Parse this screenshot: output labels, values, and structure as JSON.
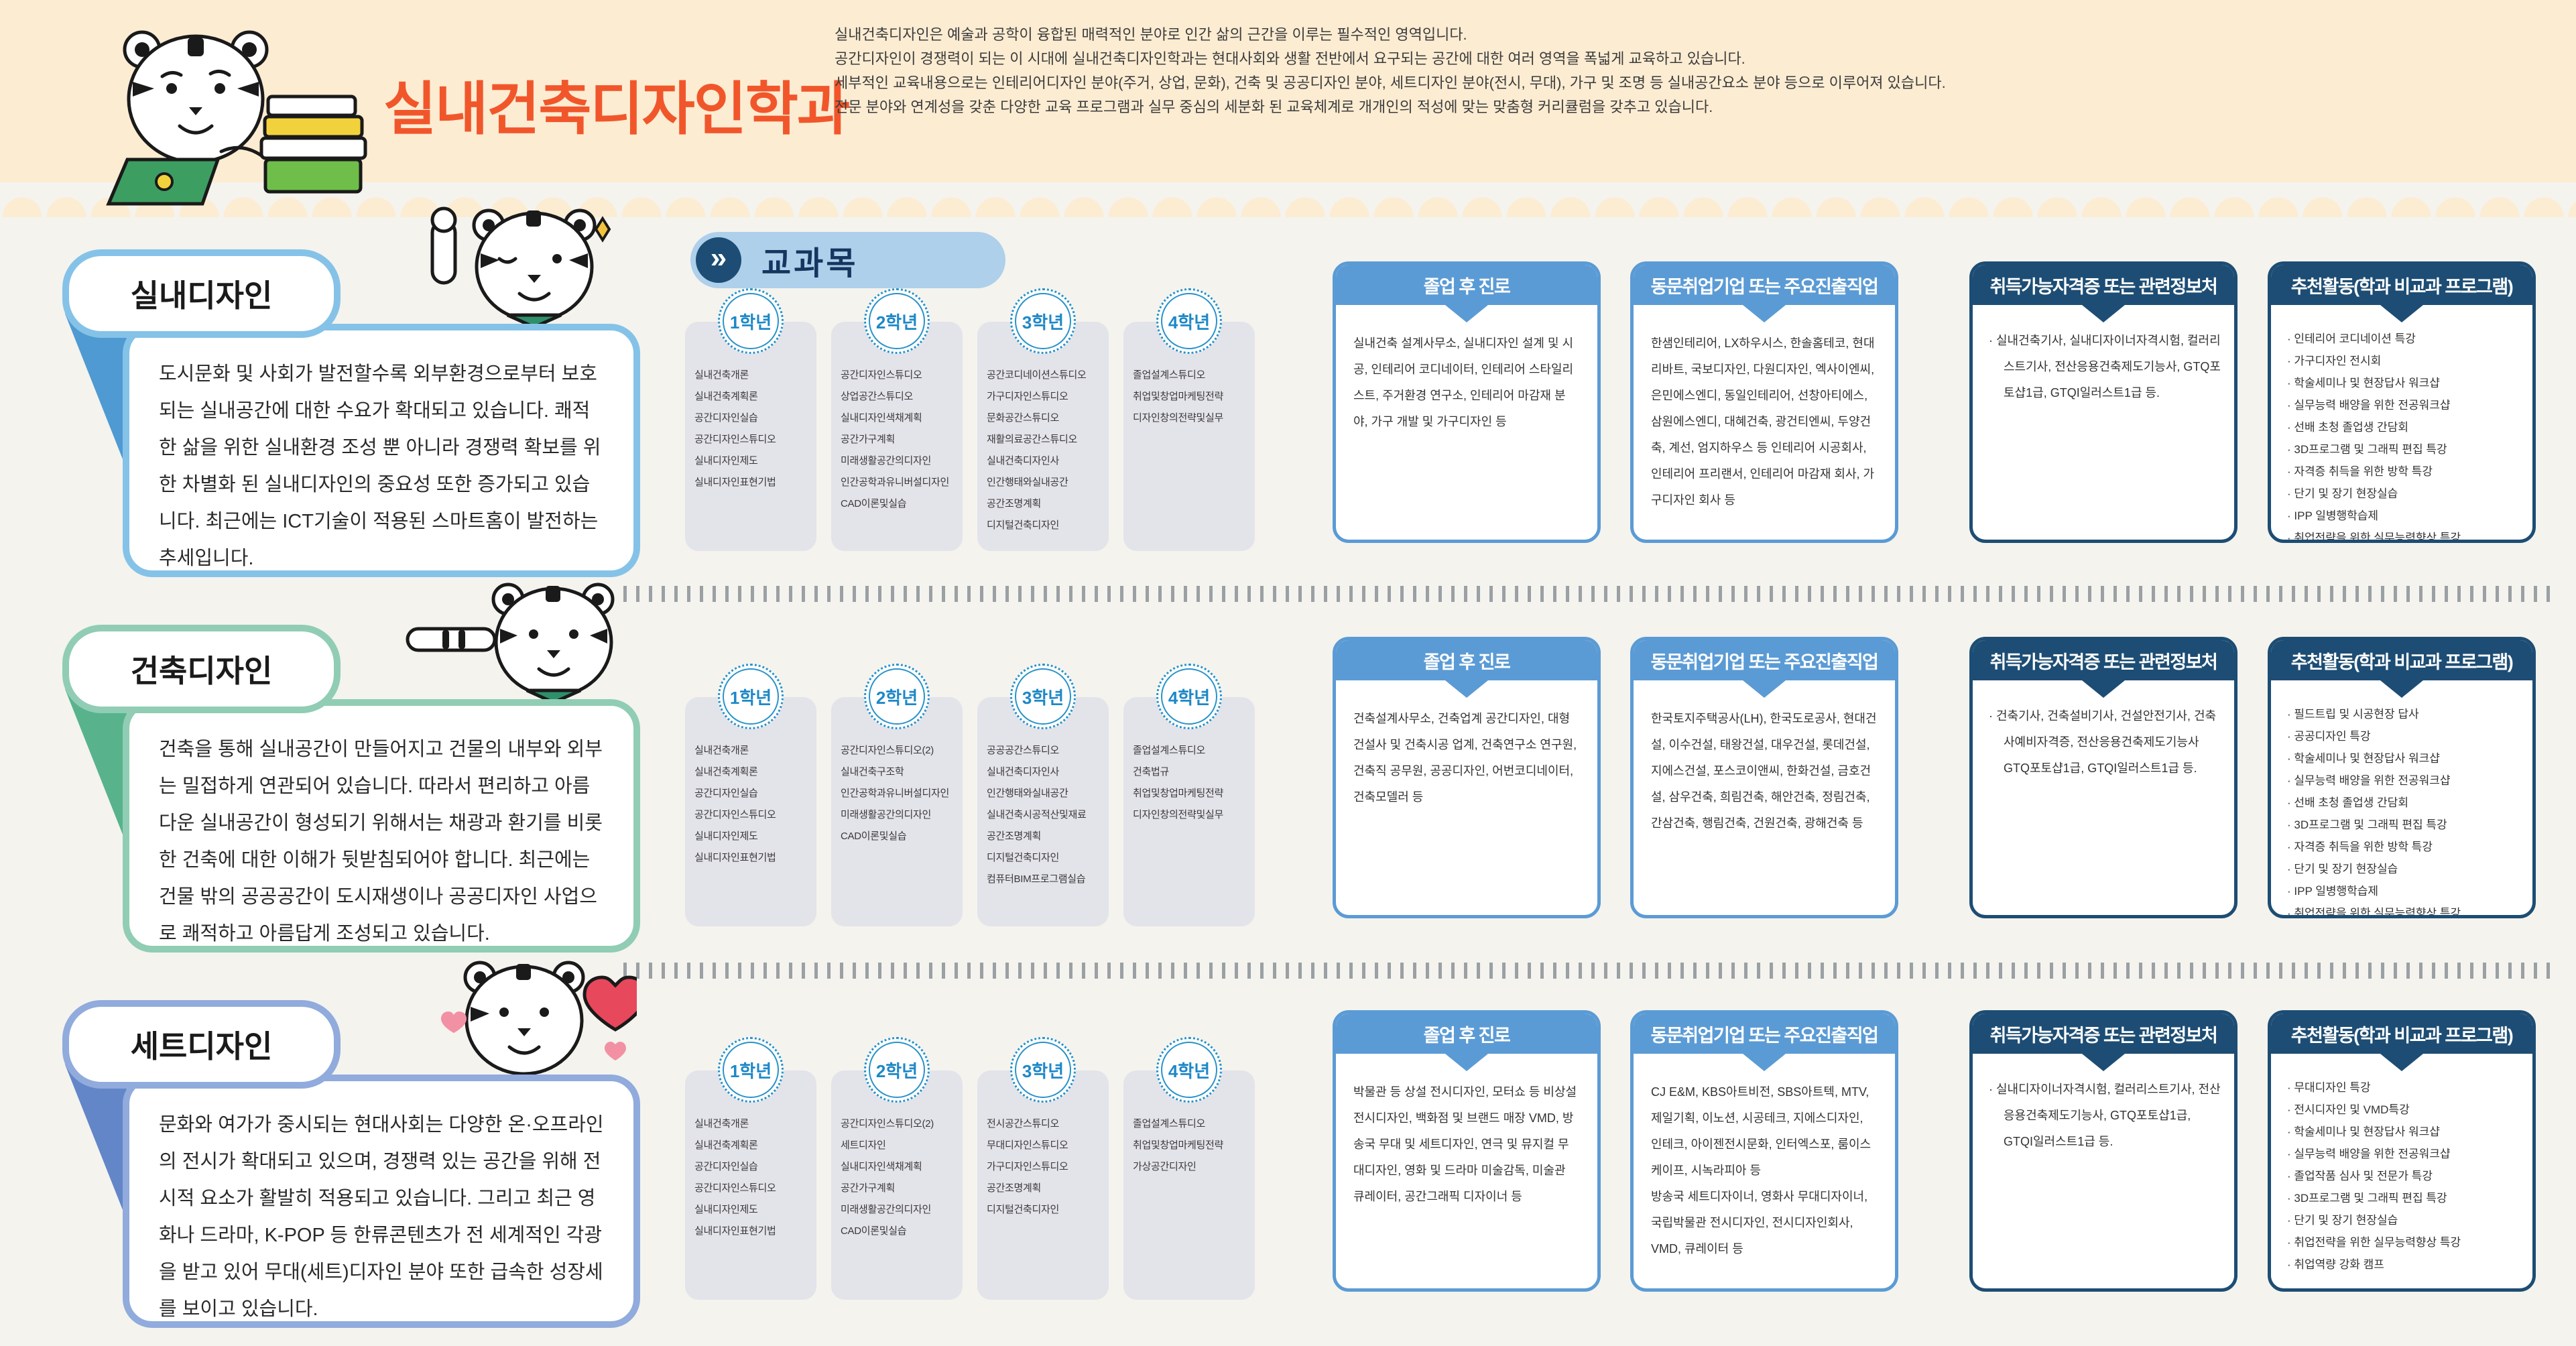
{
  "header": {
    "title": "실내건축디자인학과",
    "intro_lines": [
      "실내건축디자인은 예술과 공학이 융합된 매력적인 분야로 인간 삶의 근간을 이루는 필수적인 영역입니다.",
      "공간디자인이 경쟁력이 되는 이 시대에 실내건축디자인학과는 현대사회와 생활 전반에서 요구되는 공간에 대한 여러 영역을 폭넓게 교육하고 있습니다.",
      "세부적인 교육내용으로는 인테리어디자인 분야(주거, 상업, 문화), 건축 및 공공디자인 분야, 세트디자인 분야(전시, 무대), 가구 및 조명 등 실내공간요소 분야 등으로 이루어져 있습니다.",
      "전문 분야와 연계성을 갖춘 다양한 교육 프로그램과 실무 중심의 세분화 된 교육체계로 개개인의 적성에 맞는 맞춤형 커리큘럼을 갖추고 있습니다."
    ]
  },
  "curriculum_label": "교과목",
  "arrow_glyph": "»",
  "year_labels": [
    "1학년",
    "2학년",
    "3학년",
    "4학년"
  ],
  "panel_titles": {
    "career": "졸업 후 진로",
    "companies": "동문취업기업 또는 주요진출직업",
    "certs": "취득가능자격증 또는 관련정보처",
    "activities": "추천활동(학과 비교과 프로그램)"
  },
  "sections": [
    {
      "title": "실내디자인",
      "description": "도시문화 및 사회가 발전할수록 외부환경으로부터 보호되는 실내공간에 대한 수요가 확대되고 있습니다. 쾌적한 삶을 위한 실내환경 조성 뿐 아니라 경쟁력 확보를 위한 차별화 된 실내디자인의 중요성 또한 증가되고 있습니다. 최근에는 ICT기술이 적용된 스마트홈이 발전하는 추세입니다.",
      "years": [
        [
          "실내건축개론",
          "실내건축계획론",
          "공간디자인실습",
          "공간디자인스튜디오",
          "실내디자인제도",
          "실내디자인표현기법"
        ],
        [
          "공간디자인스튜디오",
          "상업공간스튜디오",
          "실내디자인색채계획",
          "공간가구계획",
          "미래생활공간의디자인",
          "인간공학과유니버설디자인",
          "CAD이론및실습"
        ],
        [
          "공간코디네이션스튜디오",
          "가구디자인스튜디오",
          "문화공간스튜디오",
          "재활의료공간스튜디오",
          "실내건축디자인사",
          "인간행태와실내공간",
          "공간조명계획",
          "디지털건축디자인"
        ],
        [
          "졸업설계스튜디오",
          "취업및창업마케팅전략",
          "디자인창의전략및실무"
        ]
      ],
      "career": "실내건축 설계사무소, 실내디자인 설계 및 시공, 인테리어 코디네이터, 인테리어 스타일리스트, 주거환경 연구소, 인테리어 마감재 분야, 가구 개발 및 가구디자인 등",
      "companies": "한샘인테리어, LX하우시스, 한솔홈테코, 현대리바트, 국보디자인, 다원디자인, 엑사이엔씨,은민에스엔디, 동일인테리어, 선창아티에스, 삼원에스엔디, 대혜건축, 광건티엔씨, 두양건축, 계선, 엄지하우스 등 인테리어 시공회사, 인테리어 프리랜서, 인테리어 마감재 회사, 가구디자인 회사 등",
      "certs": [
        "· 실내건축기사, 실내디자이너자격시험, 컬러리스트기사, 전산응용건축제도기능사, GTQ포토샵1급, GTQI일러스트1급 등."
      ],
      "activities": [
        "· 인테리어 코디네이션 특강",
        "· 가구디자인 전시회",
        "· 학술세미나 및 현장답사 워크샵",
        "· 실무능력 배양을 위한 전공워크샵",
        "· 선배 초청 졸업생 간담회",
        "· 3D프로그램 및 그래픽 편집 특강",
        "· 자격증 취득을 위한 방학 특강",
        "· 단기 및 장기 현장실습",
        "· IPP 일병행학습제",
        "· 취업전략을 위한 실무능력향상 특강"
      ]
    },
    {
      "title": "건축디자인",
      "description": "건축을 통해 실내공간이 만들어지고 건물의 내부와 외부는 밀접하게 연관되어 있습니다. 따라서 편리하고 아름다운 실내공간이 형성되기 위해서는 채광과 환기를 비롯한 건축에 대한 이해가 뒷받침되어야 합니다. 최근에는 건물 밖의 공공공간이 도시재생이나 공공디자인 사업으로 쾌적하고 아름답게 조성되고 있습니다.",
      "years": [
        [
          "실내건축개론",
          "실내건축계획론",
          "공간디자인실습",
          "공간디자인스튜디오",
          "실내디자인제도",
          "실내디자인표현기법"
        ],
        [
          "공간디자인스튜디오(2)",
          "실내건축구조학",
          "인간공학과유니버설디자인",
          "미래생활공간의디자인",
          "CAD이론및실습"
        ],
        [
          "공공공간스튜디오",
          "실내건축디자인사",
          "인간행태와실내공간",
          "실내건축시공적산및재료",
          "공간조명계획",
          "디지털건축디자인",
          "컴퓨터BIM프로그램실습"
        ],
        [
          "졸업설계스튜디오",
          "건축법규",
          "취업및창업마케팅전략",
          "디자인창의전략및실무"
        ]
      ],
      "career": "건축설계사무소, 건축업계 공간디자인, 대형 건설사 및 건축시공 업계, 건축연구소 연구원, 건축직 공무원, 공공디자인, 어번코디네이터, 건축모델러 등",
      "companies": "한국토지주택공사(LH), 한국도로공사, 현대건설, 이수건설, 태왕건설, 대우건설, 롯데건설, 지에스건설, 포스코이앤씨, 한화건설, 금호건설, 삼우건축, 희림건축, 해안건축, 정림건축, 간삼건축, 행림건축, 건원건축, 광해건축 등",
      "certs": [
        "· 건축기사, 건축설비기사, 건설안전기사, 건축사예비자격증, 전산응용건축제도기능사 GTQ포토샵1급, GTQI일러스트1급 등."
      ],
      "activities": [
        "· 필드트립 및 시공현장 답사",
        "· 공공디자인 특강",
        "· 학술세미나 및 현장답사 워크샵",
        "· 실무능력 배양을 위한 전공워크샵",
        "· 선배 초청 졸업생 간담회",
        "· 3D프로그램 및 그래픽 편집 특강",
        "· 자격증 취득을 위한 방학 특강",
        "· 단기 및 장기 현장실습",
        "· IPP 일병행학습제",
        "· 취업전략을 위한 실무능력향상 특강"
      ]
    },
    {
      "title": "세트디자인",
      "description": "문화와 여가가 중시되는 현대사회는 다양한 온·오프라인의 전시가 확대되고 있으며, 경쟁력 있는 공간을 위해 전시적 요소가 활발히 적용되고 있습니다. 그리고 최근 영화나 드라마, K-POP 등 한류콘텐츠가 전 세계적인 각광을 받고 있어 무대(세트)디자인 분야 또한 급속한 성장세를 보이고 있습니다.",
      "years": [
        [
          "실내건축개론",
          "실내건축계획론",
          "공간디자인실습",
          "공간디자인스튜디오",
          "실내디자인제도",
          "실내디자인표현기법"
        ],
        [
          "공간디자인스튜디오(2)",
          "세트디자인",
          "실내디자인색채계획",
          "공간가구계획",
          "미래생활공간의디자인",
          "CAD이론및실습"
        ],
        [
          "전시공간스튜디오",
          "무대디자인스튜디오",
          "가구디자인스튜디오",
          "공간조명계획",
          "디지털건축디자인"
        ],
        [
          "졸업설계스튜디오",
          "취업및창업마케팅전략",
          "가상공간디자인"
        ]
      ],
      "career": "박물관 등 상설 전시디자인, 모터쇼 등 비상설 전시디자인, 백화점 및 브랜드 매장 VMD, 방송국 무대 및 세트디자인, 연극 및 뮤지컬 무대디자인, 영화 및 드라마 미술감독, 미술관 큐레이터, 공간그래픽 디자이너 등",
      "companies": "CJ E&M, KBS아트비전, SBS아트텍, MTV, 제일기획, 이노션, 시공테크, 지에스디자인, 인테크, 아이젠전시문화, 인터엑스포, 룸이스케이프, 시녹라피아 등\n방송국 세트디자이너, 영화사 무대디자이너, 국립박물관 전시디자인, 전시디자인회사, VMD, 큐레이터 등",
      "certs": [
        "· 실내디자이너자격시험, 컬러리스트기사, 전산응용건축제도기능사, GTQ포토샵1급, GTQI일러스트1급 등."
      ],
      "activities": [
        "· 무대디자인 특강",
        "· 전시디자인 및 VMD특강",
        "· 학술세미나 및 현장답사 워크샵",
        "· 실무능력 배양을 위한 전공워크샵",
        "· 졸업작품 심사 및 전문가 특강",
        "· 3D프로그램 및 그래픽 편집 특강",
        "· 단기 및 장기 현장실습",
        "· 취업전략을 위한 실무능력향상 특강",
        "· 취업역량 강화 캠프"
      ]
    }
  ],
  "colors": {
    "accent_orange": "#f1562b",
    "band_peach": "#fcecd2",
    "panel_blue": "#5b9bd5",
    "panel_navy": "#1d4d74",
    "box_blue": "#85c2e8",
    "box_green": "#90cdb4",
    "box_periwinkle": "#90abdc",
    "badge_blue": "#2a93c9",
    "card_gray": "#e3e3ea"
  }
}
